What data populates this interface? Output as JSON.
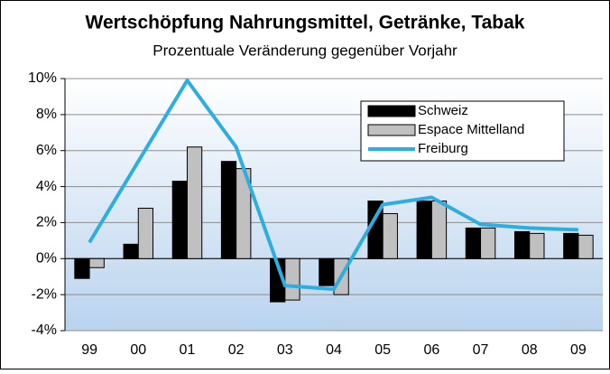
{
  "chart_data": {
    "type": "bar",
    "title": "Wertschöpfung Nahrungsmittel, Getränke, Tabak",
    "subtitle": "Prozentuale Veränderung gegenüber Vorjahr",
    "categories": [
      "99",
      "00",
      "01",
      "02",
      "03",
      "04",
      "05",
      "06",
      "07",
      "08",
      "09"
    ],
    "series": [
      {
        "name": "Schweiz",
        "type": "bar",
        "color": "#000000",
        "values": [
          -1.1,
          0.8,
          4.3,
          5.4,
          -2.4,
          -1.5,
          3.2,
          3.2,
          1.7,
          1.5,
          1.4
        ]
      },
      {
        "name": "Espace Mittelland",
        "type": "bar",
        "color": "#c0c0c0",
        "values": [
          -0.5,
          2.8,
          6.2,
          5.0,
          -2.3,
          -2.0,
          2.5,
          3.2,
          1.7,
          1.4,
          1.3
        ]
      },
      {
        "name": "Freiburg",
        "type": "line",
        "color": "#2eaee0",
        "values": [
          0.9,
          5.4,
          9.9,
          6.2,
          -1.5,
          -1.7,
          3.0,
          3.4,
          1.9,
          1.7,
          1.6
        ]
      }
    ],
    "ylim": [
      -4,
      10
    ],
    "yticks": [
      {
        "value": -4,
        "label": "-4%"
      },
      {
        "value": -2,
        "label": "-2%"
      },
      {
        "value": 0,
        "label": "0%"
      },
      {
        "value": 2,
        "label": "2%"
      },
      {
        "value": 4,
        "label": "4%"
      },
      {
        "value": 6,
        "label": "6%"
      },
      {
        "value": 8,
        "label": "8%"
      },
      {
        "value": 10,
        "label": "10%"
      }
    ],
    "grid": true,
    "legend": "upper right"
  }
}
